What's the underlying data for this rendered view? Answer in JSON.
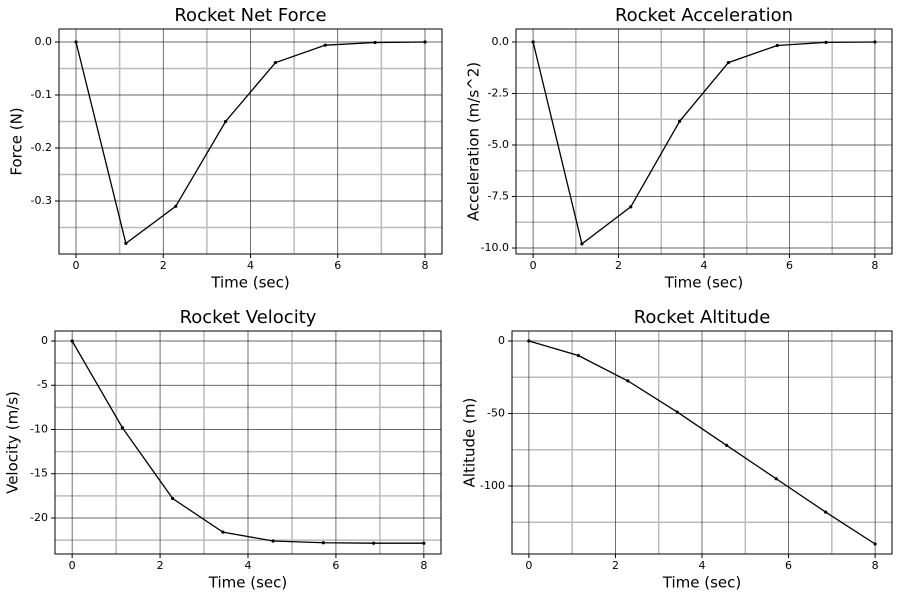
{
  "chart_data": [
    {
      "type": "line",
      "title": "Rocket Net Force",
      "x_label": "Time (sec)",
      "y_label": "Force (N)",
      "x": [
        0,
        1.143,
        2.286,
        3.429,
        4.571,
        5.714,
        6.857,
        8
      ],
      "series": [
        {
          "color": "#000000",
          "values": [
            0,
            -0.38,
            -0.31,
            -0.15,
            -0.039,
            -0.006,
            -0.001,
            0
          ]
        }
      ],
      "xlim": [
        -0.39,
        8.39
      ],
      "xticks": [
        0,
        2,
        4,
        6,
        8
      ],
      "xminorticks": [
        1,
        3,
        5,
        7
      ],
      "ylim": [
        -0.4,
        0.0245
      ],
      "yticks": [
        {
          "value": 0,
          "label": "0.0"
        },
        -0.1,
        -0.2,
        -0.3
      ],
      "yminorticks": [
        -0.05,
        -0.15,
        -0.25,
        -0.35
      ],
      "grid": true
    },
    {
      "type": "line",
      "title": "Rocket Acceleration",
      "x_label": "Time (sec)",
      "y_label": "Acceleration (m/s^2)",
      "x": [
        0,
        1.143,
        2.286,
        3.429,
        4.571,
        5.714,
        6.857,
        8
      ],
      "series": [
        {
          "color": "#000000",
          "values": [
            0,
            -9.8,
            -8.0,
            -3.85,
            -1.0,
            -0.17,
            -0.02,
            0
          ]
        }
      ],
      "xlim": [
        -0.4,
        8.4
      ],
      "xticks": [
        0,
        2,
        4,
        6,
        8
      ],
      "xminorticks": [
        1,
        3,
        5,
        7
      ],
      "ylim": [
        -10.29,
        0.63
      ],
      "yticks": [
        {
          "value": 0,
          "label": "0.0"
        },
        -2.5,
        {
          "value": -5,
          "label": "-5.0"
        },
        -7.5,
        {
          "value": -10,
          "label": "-10.0"
        }
      ],
      "yminorticks": [
        -1.25,
        -3.75,
        -6.25,
        -8.75
      ],
      "grid": true
    },
    {
      "type": "line",
      "title": "Rocket Velocity",
      "x_label": "Time (sec)",
      "y_label": "Velocity (m/s)",
      "x": [
        0,
        1.143,
        2.286,
        3.429,
        4.571,
        5.714,
        6.857,
        8
      ],
      "series": [
        {
          "color": "#000000",
          "values": [
            0,
            -9.8,
            -17.8,
            -21.6,
            -22.6,
            -22.8,
            -22.85,
            -22.85
          ]
        }
      ],
      "xlim": [
        -0.39,
        8.39
      ],
      "xticks": [
        0,
        2,
        4,
        6,
        8
      ],
      "xminorticks": [
        1,
        3,
        5,
        7
      ],
      "ylim": [
        -24.07,
        1.13
      ],
      "yticks": [
        0,
        -5,
        -10,
        -15,
        -20
      ],
      "yminorticks": [
        -2.5,
        -7.5,
        -12.5,
        -17.5,
        -22.5
      ],
      "grid": true
    },
    {
      "type": "line",
      "title": "Rocket Altitude",
      "x_label": "Time (sec)",
      "y_label": "Altitude (m)",
      "x": [
        0,
        1.143,
        2.286,
        3.429,
        4.571,
        5.714,
        6.857,
        8
      ],
      "series": [
        {
          "color": "#000000",
          "values": [
            0,
            -10,
            -27.5,
            -49,
            -72,
            -95,
            -118,
            -140
          ]
        }
      ],
      "xlim": [
        -0.39,
        8.39
      ],
      "xticks": [
        0,
        2,
        4,
        6,
        8
      ],
      "xminorticks": [
        1,
        3,
        5,
        7
      ],
      "ylim": [
        -146.9,
        6.9
      ],
      "yticks": [
        0,
        -50,
        -100
      ],
      "yminorticks": [
        -25,
        -75,
        -125
      ],
      "grid": true
    }
  ]
}
